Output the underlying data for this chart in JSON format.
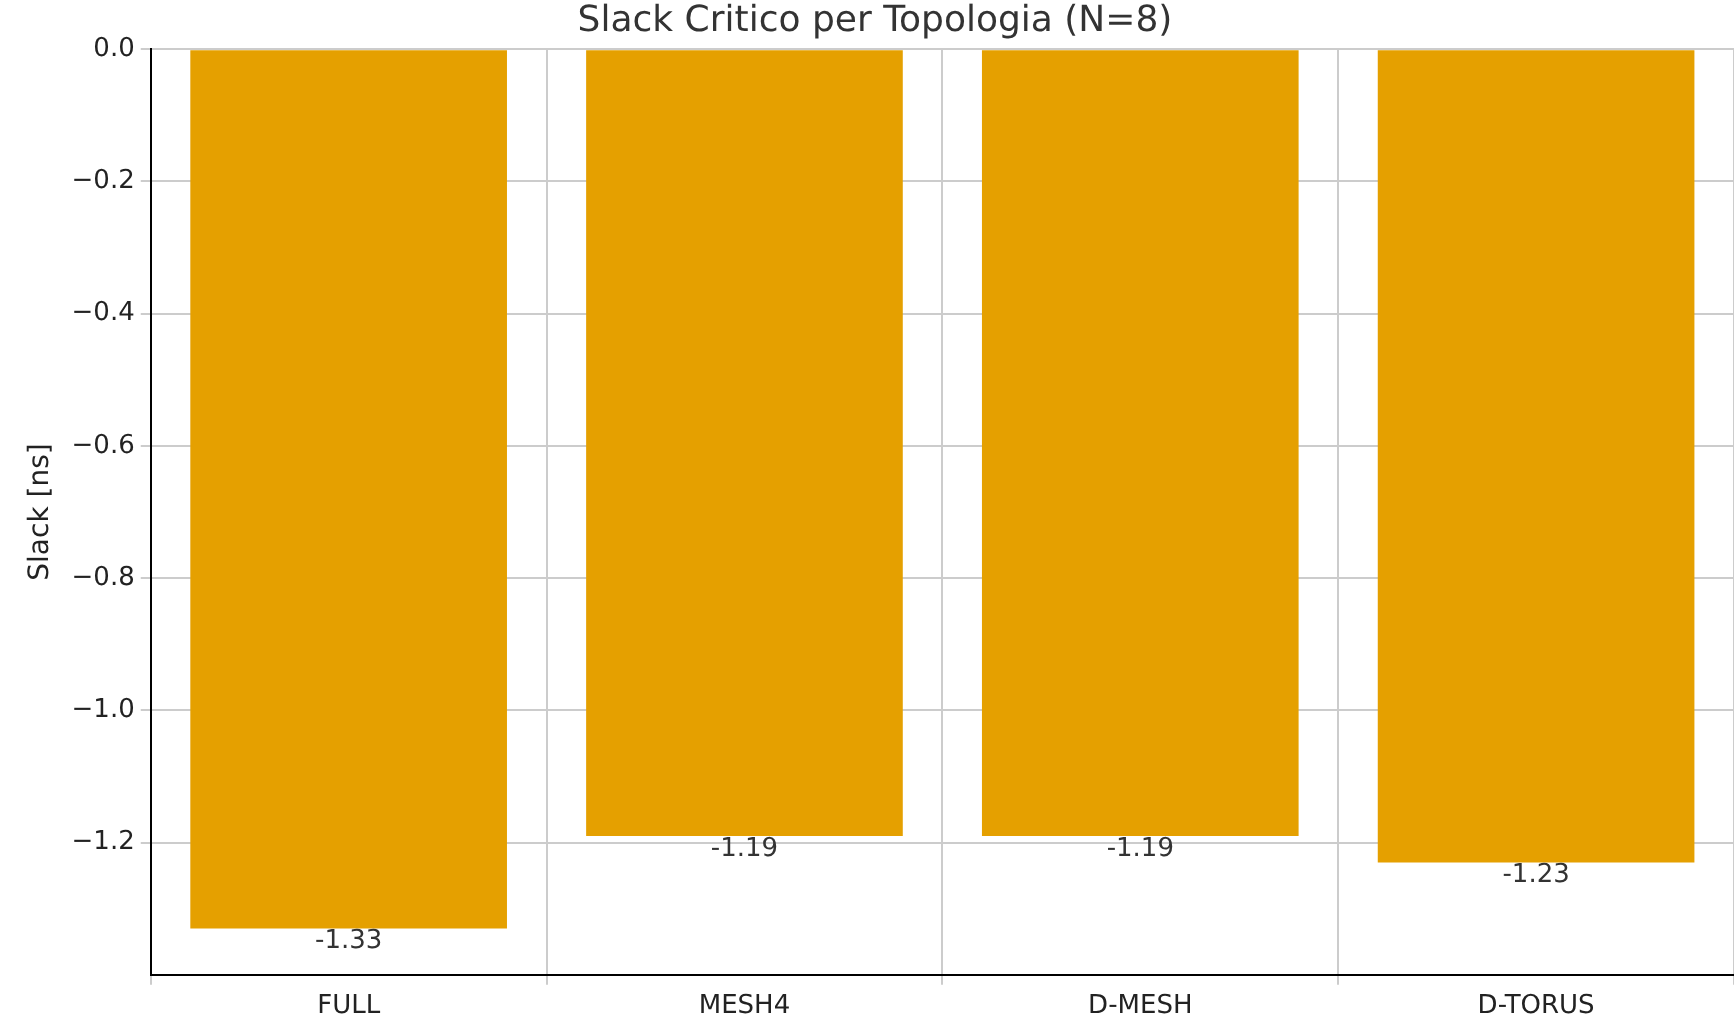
{
  "chart_data": {
    "type": "bar",
    "title": "Slack Critico per Topologia (N=8)",
    "ylabel": "Slack [ns]",
    "categories": [
      "FULL",
      "MESH4",
      "D-MESH",
      "D-TORUS"
    ],
    "values": [
      -1.33,
      -1.19,
      -1.19,
      -1.23
    ],
    "color": "#e5a000",
    "ylim": [
      -1.4,
      0
    ],
    "yticks": [
      {
        "value": 0,
        "label": "0.0"
      },
      {
        "value": -0.2,
        "label": "−0.2"
      },
      {
        "value": -0.4,
        "label": "−0.4"
      },
      {
        "value": -0.6,
        "label": "−0.6"
      },
      {
        "value": -0.8,
        "label": "−0.8"
      },
      {
        "value": -1.0,
        "label": "−1.0"
      },
      {
        "value": -1.2,
        "label": "−1.2"
      }
    ],
    "grid": true,
    "data_labels": true
  }
}
